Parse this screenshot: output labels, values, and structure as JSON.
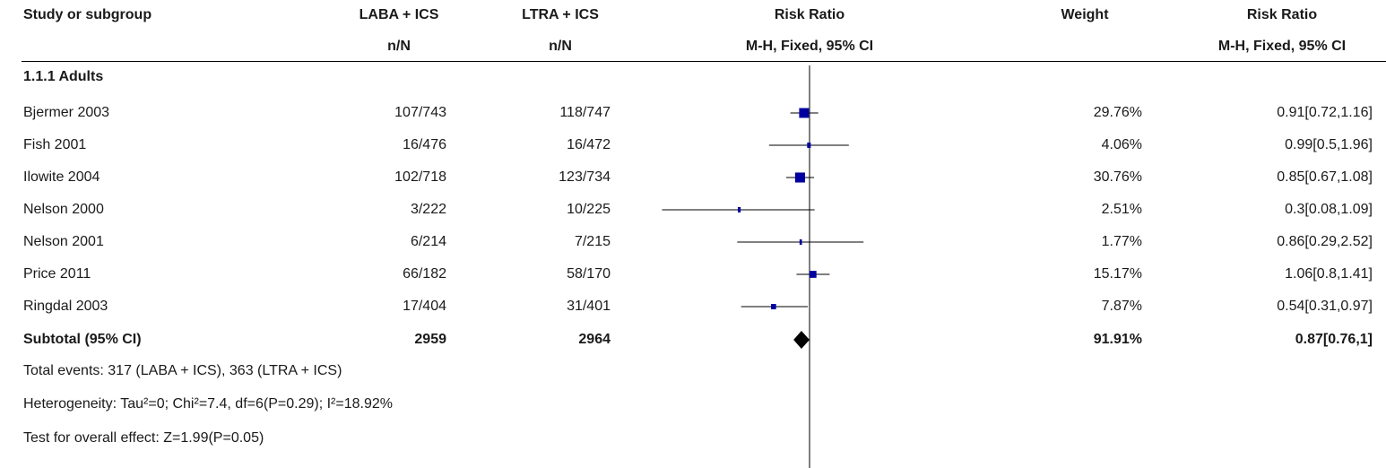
{
  "header": {
    "study": "Study or subgroup",
    "group1": "LABA + ICS",
    "group2": "LTRA + ICS",
    "group1_sub": "n/N",
    "group2_sub": "n/N",
    "plot_title": "Risk Ratio",
    "plot_sub": "M-H, Fixed, 95% CI",
    "weight": "Weight",
    "rr_title": "Risk Ratio",
    "rr_sub": "M-H, Fixed, 95% CI"
  },
  "subgroup": {
    "label": "1.1.1 Adults"
  },
  "subtotal": {
    "label": "Subtotal (95% CI)",
    "n1": "2959",
    "n2": "2964",
    "weight": "91.91%",
    "ci_text": "0.87[0.76,1]"
  },
  "footer": {
    "events": "Total events: 317 (LABA + ICS), 363 (LTRA + ICS)",
    "heterogeneity": "Heterogeneity: Tau²=0; Chi²=7.4, df=6(P=0.29); I²=18.92%",
    "overall": "Test for overall effect: Z=1.99(P=0.05)"
  },
  "colors": {
    "marker": "#0000a0",
    "line": "#000000",
    "diamond": "#000000"
  },
  "chart_data": {
    "type": "forest",
    "scale": "log",
    "null_value": 1,
    "xlim": [
      0.01,
      100
    ],
    "studies": [
      {
        "name": "Bjermer 2003",
        "g1": "107/743",
        "g2": "118/747",
        "rr": 0.91,
        "lo": 0.72,
        "hi": 1.16,
        "weight": 29.76,
        "weight_text": "29.76%",
        "ci_text": "0.91[0.72,1.16]"
      },
      {
        "name": "Fish 2001",
        "g1": "16/476",
        "g2": "16/472",
        "rr": 0.99,
        "lo": 0.5,
        "hi": 1.96,
        "weight": 4.06,
        "weight_text": "4.06%",
        "ci_text": "0.99[0.5,1.96]"
      },
      {
        "name": "Ilowite 2004",
        "g1": "102/718",
        "g2": "123/734",
        "rr": 0.85,
        "lo": 0.67,
        "hi": 1.08,
        "weight": 30.76,
        "weight_text": "30.76%",
        "ci_text": "0.85[0.67,1.08]"
      },
      {
        "name": "Nelson 2000",
        "g1": "3/222",
        "g2": "10/225",
        "rr": 0.3,
        "lo": 0.08,
        "hi": 1.09,
        "weight": 2.51,
        "weight_text": "2.51%",
        "ci_text": "0.3[0.08,1.09]"
      },
      {
        "name": "Nelson 2001",
        "g1": "6/214",
        "g2": "7/215",
        "rr": 0.86,
        "lo": 0.29,
        "hi": 2.52,
        "weight": 1.77,
        "weight_text": "1.77%",
        "ci_text": "0.86[0.29,2.52]"
      },
      {
        "name": "Price 2011",
        "g1": "66/182",
        "g2": "58/170",
        "rr": 1.06,
        "lo": 0.8,
        "hi": 1.41,
        "weight": 15.17,
        "weight_text": "15.17%",
        "ci_text": "1.06[0.8,1.41]"
      },
      {
        "name": "Ringdal 2003",
        "g1": "17/404",
        "g2": "31/401",
        "rr": 0.54,
        "lo": 0.31,
        "hi": 0.97,
        "weight": 7.87,
        "weight_text": "7.87%",
        "ci_text": "0.54[0.31,0.97]"
      }
    ],
    "subtotal": {
      "rr": 0.87,
      "lo": 0.76,
      "hi": 1
    }
  }
}
